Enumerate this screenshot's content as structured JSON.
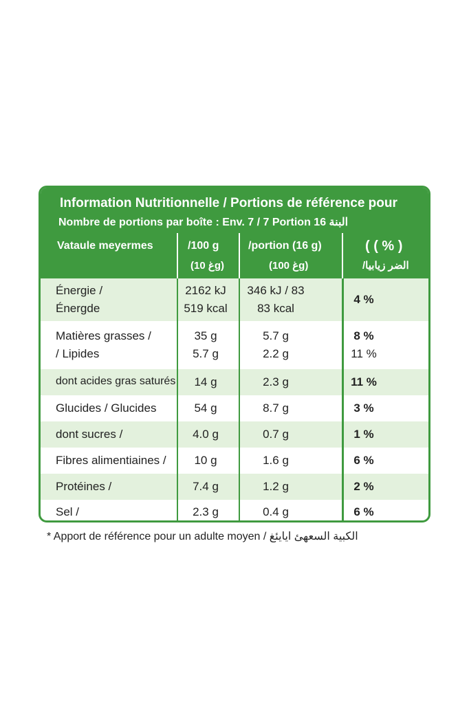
{
  "header": {
    "line1": "Information Nutritionnelle / Portions de référence pour",
    "line2": "Nombre de portions par boîte : Env. 7   /  7 Portion 16 البنة"
  },
  "columns": {
    "name": "Vataule meyermes",
    "per100_line1": "/100 g",
    "per100_line2": "(غ 10g)",
    "portion_line1": "/portion (16 g)",
    "portion_line2": "(غ 100g)",
    "pct_line1": "( ( % )",
    "pct_line2": "/الضر زيابيا"
  },
  "rows": [
    {
      "name": [
        "Énergie /",
        "Énergde"
      ],
      "per100": [
        "2162 kJ",
        "519 kcal"
      ],
      "portion": [
        "346 kJ / 83",
        "83 kcal"
      ],
      "pct": [
        "4 %"
      ]
    },
    {
      "name": [
        "Matières grasses /",
        "/ Lipides"
      ],
      "per100": [
        "35 g",
        "5.7 g"
      ],
      "portion": [
        "5.7 g",
        "2.2 g"
      ],
      "pct": [
        "8 %",
        "11 %"
      ]
    },
    {
      "name": [
        "dont acides gras saturés"
      ],
      "per100": [
        "14 g"
      ],
      "portion": [
        "2.3 g"
      ],
      "pct": [
        "11 %"
      ]
    },
    {
      "name": [
        "Glucides / Glucides"
      ],
      "per100": [
        "54 g"
      ],
      "portion": [
        "8.7 g"
      ],
      "pct": [
        "3 %"
      ]
    },
    {
      "name": [
        "dont sucres /"
      ],
      "per100": [
        "4.0 g"
      ],
      "portion": [
        "0.7 g"
      ],
      "pct": [
        "1 %"
      ]
    },
    {
      "name": [
        "Fibres alimentiaines /"
      ],
      "per100": [
        "10 g"
      ],
      "portion": [
        "1.6 g"
      ],
      "pct": [
        "6 %"
      ]
    },
    {
      "name": [
        "Protéines /"
      ],
      "per100": [
        "7.4 g"
      ],
      "portion": [
        "1.2 g"
      ],
      "pct": [
        "2 %"
      ]
    },
    {
      "name": [
        "Sel /"
      ],
      "per100": [
        "2.3 g"
      ],
      "portion": [
        "0.4 g"
      ],
      "pct": [
        "6 %"
      ]
    }
  ],
  "footnote": "* Apport de référence pour un adulte moyen / الكبية السعهئ ايايئغ",
  "colors": {
    "green": "#3f9a3f",
    "light_green": "#e3f1dd"
  }
}
